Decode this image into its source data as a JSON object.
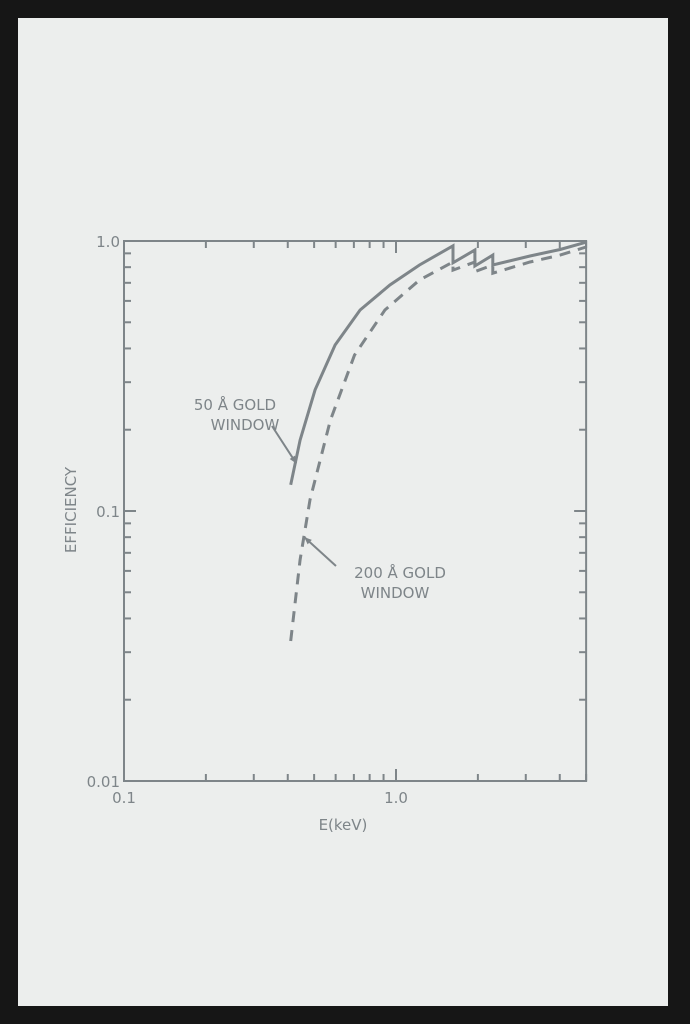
{
  "chart_data": {
    "type": "line",
    "xlabel": "E(keV)",
    "ylabel": "EFFICIENCY",
    "xscale": "log",
    "yscale": "log",
    "xlim": [
      0.1,
      5.0
    ],
    "ylim": [
      0.01,
      1.0
    ],
    "xticklabels": [
      "0.1",
      "1.0"
    ],
    "yticklabels": [
      "0.01",
      "0.1",
      "1.0"
    ],
    "grid": false,
    "line_color": "#7e8589",
    "series": [
      {
        "name": "50 Å GOLD WINDOW",
        "style": "solid",
        "x": [
          0.41,
          0.444,
          0.504,
          0.597,
          0.738,
          0.95,
          1.22,
          1.62,
          1.62,
          1.95,
          1.95,
          2.27,
          2.27,
          3.11,
          4.01,
          5.0
        ],
        "y": [
          0.125,
          0.183,
          0.281,
          0.412,
          0.555,
          0.687,
          0.815,
          0.96,
          0.83,
          0.926,
          0.808,
          0.887,
          0.815,
          0.88,
          0.93,
          0.99
        ]
      },
      {
        "name": "200 Å GOLD WINDOW",
        "style": "dashed",
        "x": [
          0.41,
          0.444,
          0.483,
          0.574,
          0.704,
          0.91,
          1.22,
          1.62,
          1.62,
          1.95,
          1.95,
          2.27,
          2.27,
          3.11,
          4.01,
          5.0
        ],
        "y": [
          0.033,
          0.066,
          0.11,
          0.217,
          0.378,
          0.555,
          0.717,
          0.836,
          0.78,
          0.836,
          0.77,
          0.815,
          0.76,
          0.836,
          0.887,
          0.95
        ]
      }
    ],
    "annotations": [
      {
        "lines": [
          "50 Å GOLD",
          "WINDOW"
        ],
        "points_to": [
          0.43,
          0.15
        ]
      },
      {
        "lines": [
          "200 Å GOLD",
          "WINDOW"
        ],
        "points_to": [
          0.46,
          0.08
        ]
      }
    ]
  }
}
